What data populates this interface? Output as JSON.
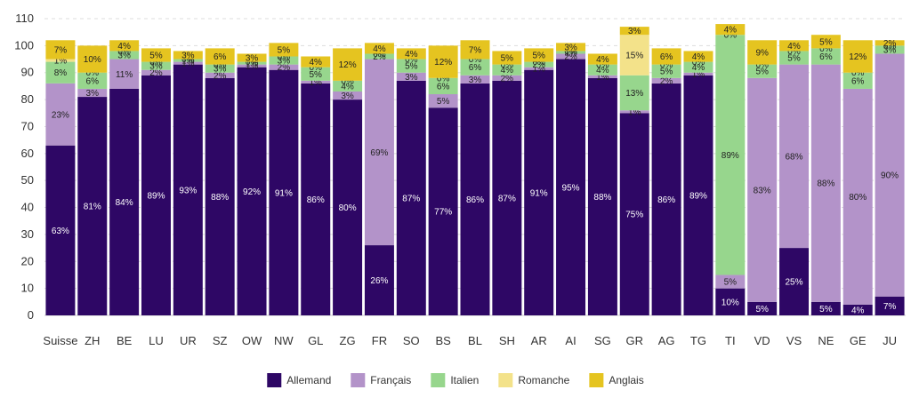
{
  "chart_data": {
    "type": "bar",
    "stacked": true,
    "title": "",
    "xlabel": "",
    "ylabel": "",
    "ylim": [
      0,
      110
    ],
    "yticks": [
      0,
      10,
      20,
      30,
      40,
      50,
      60,
      70,
      80,
      90,
      100,
      110
    ],
    "grid": true,
    "legend_position": "bottom",
    "categories": [
      "Suisse",
      "ZH",
      "BE",
      "LU",
      "UR",
      "SZ",
      "OW",
      "NW",
      "GL",
      "ZG",
      "FR",
      "SO",
      "BS",
      "BL",
      "SH",
      "AR",
      "AI",
      "SG",
      "GR",
      "AG",
      "TG",
      "TI",
      "VD",
      "VS",
      "NE",
      "GE",
      "JU"
    ],
    "series": [
      {
        "name": "Allemand",
        "color": "#2e0765",
        "label_color": "#ffffff",
        "values": [
          63,
          81,
          84,
          89,
          93,
          88,
          92,
          91,
          86,
          80,
          26,
          87,
          77,
          86,
          87,
          91,
          95,
          88,
          75,
          86,
          89,
          10,
          5,
          25,
          5,
          4,
          7
        ]
      },
      {
        "name": "Français",
        "color": "#b393c9",
        "label_color": "#222222",
        "values": [
          23,
          3,
          11,
          2,
          1,
          2,
          1,
          2,
          1,
          3,
          69,
          3,
          5,
          3,
          2,
          1,
          2,
          1,
          1,
          2,
          1,
          5,
          83,
          68,
          88,
          80,
          90
        ]
      },
      {
        "name": "Italien",
        "color": "#97d68d",
        "label_color": "#222222",
        "values": [
          8,
          6,
          3,
          3,
          1,
          3,
          1,
          3,
          5,
          4,
          2,
          5,
          6,
          6,
          4,
          2,
          1,
          4,
          13,
          5,
          4,
          89,
          5,
          5,
          6,
          6,
          3
        ]
      },
      {
        "name": "Romanche",
        "color": "#f3e28a",
        "label_color": "#222222",
        "values": [
          1,
          0,
          0,
          0,
          0,
          0,
          0,
          0,
          0,
          0,
          0,
          0,
          0,
          0,
          0,
          0,
          0,
          0,
          15,
          0,
          0,
          0,
          0,
          0,
          0,
          0,
          0
        ]
      },
      {
        "name": "Anglais",
        "color": "#e5c420",
        "label_color": "#222222",
        "values": [
          7,
          10,
          4,
          5,
          3,
          6,
          3,
          5,
          4,
          12,
          4,
          4,
          12,
          7,
          5,
          5,
          3,
          4,
          3,
          6,
          4,
          4,
          9,
          4,
          5,
          12,
          2
        ]
      }
    ]
  }
}
